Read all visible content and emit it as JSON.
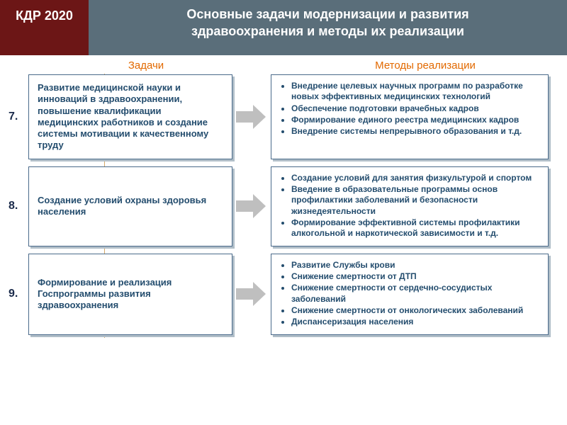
{
  "header": {
    "badge": "КДР 2020",
    "title_line1": "Основные задачи модернизации и развития",
    "title_line2": "здравоохранения и методы их реализации"
  },
  "columns": {
    "tasks": "Задачи",
    "methods": "Методы реализации"
  },
  "rows": [
    {
      "num": "7.",
      "task": "Развитие медицинской науки и инноваций в здравоохранении, повышение квалификации медицинских работников и создание системы мотивации к качественному труду",
      "methods": [
        "Внедрение целевых научных программ по разработке новых эффективных медицинских технологий",
        "Обеспечение подготовки врачебных кадров",
        "Формирование единого реестра медицинских кадров",
        "Внедрение системы непрерывного образования и т.д."
      ]
    },
    {
      "num": "8.",
      "task": "Создание условий охраны здоровья населения",
      "methods": [
        "Создание условий для занятия физкультурой и спортом",
        "Введение в образовательные программы основ профилактики заболеваний и безопасности жизнедеятельности",
        "Формирование эффективной системы профилактики алкогольной и наркотической зависимости и т.д."
      ]
    },
    {
      "num": "9.",
      "task": "Формирование и реализация Госпрограммы развития здравоохранения",
      "methods": [
        "Развитие Службы крови",
        "Снижение смертности от ДТП",
        "Снижение смертности от сердечно-сосудистых заболеваний",
        "Снижение смертности от онкологических заболеваний",
        "Диспансеризация населения"
      ]
    }
  ],
  "colors": {
    "header_bg": "#5a6e7a",
    "badge_bg": "#6c1616",
    "accent": "#e26900",
    "text_dark": "#244d6e",
    "box_border": "#4a6a8a",
    "box_shadow": "#b0bec8",
    "arrow": "#bfbfbf",
    "vline": "#d4a86a"
  }
}
